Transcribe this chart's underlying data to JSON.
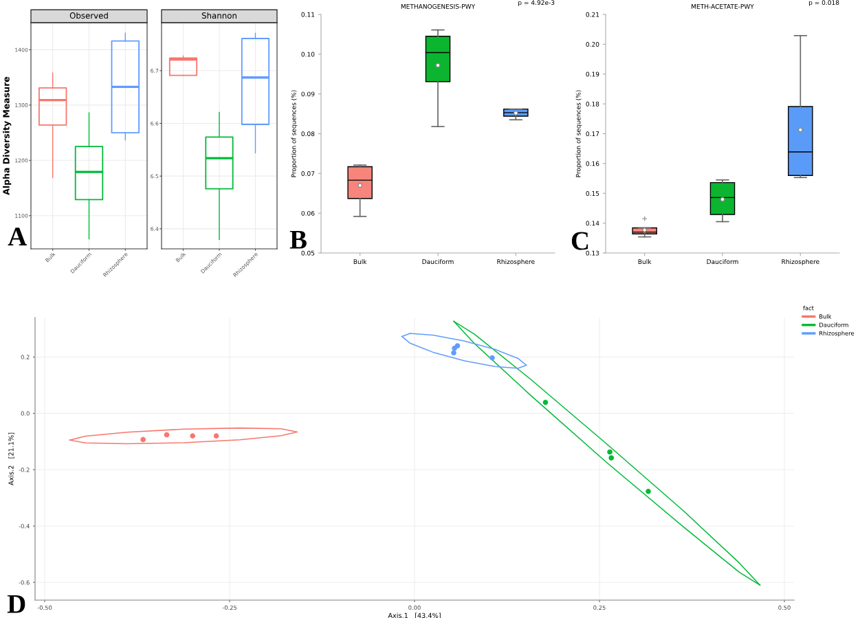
{
  "chart_data": [
    {
      "type": "box",
      "title": "Observed",
      "ylabel": "Alpha Diversity Measure",
      "categories": [
        "Bulk",
        "Dauciform",
        "Rhizosphere"
      ],
      "colors": [
        "#f8766d",
        "#00ba38",
        "#619cff"
      ],
      "grid": true,
      "ylim": [
        1040,
        1449
      ],
      "yticks": [
        1100,
        1200,
        1300,
        1400
      ],
      "annotations": [
        "A"
      ],
      "boxes": [
        {
          "low": 1169,
          "q1": 1264,
          "median": 1309,
          "q3": 1331,
          "high": 1358
        },
        {
          "low": 1058,
          "q1": 1129,
          "median": 1179,
          "q3": 1225,
          "high": 1286
        },
        {
          "low": 1237,
          "q1": 1250,
          "median": 1333,
          "q3": 1416,
          "high": 1430
        }
      ]
    },
    {
      "type": "box",
      "title": "Shannon",
      "categories": [
        "Bulk",
        "Dauciform",
        "Rhizosphere"
      ],
      "colors": [
        "#f8766d",
        "#00ba38",
        "#619cff"
      ],
      "grid": true,
      "ylim": [
        6.362,
        6.791
      ],
      "yticks": [
        6.4,
        6.5,
        6.6,
        6.7
      ],
      "boxes": [
        {
          "low": 6.691,
          "q1": 6.691,
          "median": 6.721,
          "q3": 6.724,
          "high": 6.728
        },
        {
          "low": 6.38,
          "q1": 6.476,
          "median": 6.534,
          "q3": 6.574,
          "high": 6.621
        },
        {
          "low": 6.544,
          "q1": 6.598,
          "median": 6.687,
          "q3": 6.761,
          "high": 6.771
        }
      ]
    },
    {
      "type": "box",
      "title": "METHANOGENESIS-PWY",
      "ylabel": "Proportion of sequences (%)",
      "categories": [
        "Bulk",
        "Dauciform",
        "Rhizosphere"
      ],
      "colors": [
        "#f7857c",
        "#0cb530",
        "#5b9bf8"
      ],
      "ylim": [
        0.05,
        0.11
      ],
      "yticks": [
        0.05,
        0.06,
        0.07,
        0.08,
        0.09,
        {
          "value": 0.1,
          "label": "0.10"
        },
        0.11
      ],
      "annotations": [
        "B",
        "p = 4.92e-3"
      ],
      "boxes": [
        {
          "low": 0.0592,
          "q1": 0.0637,
          "median": 0.0683,
          "q3": 0.0717,
          "high": 0.0721,
          "mean": 0.067
        },
        {
          "low": 0.0818,
          "q1": 0.0931,
          "median": 0.1004,
          "q3": 0.1045,
          "high": 0.1061,
          "mean": 0.0972
        },
        {
          "low": 0.0835,
          "q1": 0.0844,
          "median": 0.0853,
          "q3": 0.0862,
          "high": 0.0862,
          "mean": 0.0852
        }
      ]
    },
    {
      "type": "box",
      "title": "METH-ACETATE-PWY",
      "ylabel": "Proportion of sequences (%)",
      "categories": [
        "Bulk",
        "Dauciform",
        "Rhizosphere"
      ],
      "colors": [
        "#f7857c",
        "#0cb530",
        "#5b9bf8"
      ],
      "ylim": [
        0.13,
        0.21
      ],
      "yticks": [
        0.13,
        0.14,
        0.15,
        0.16,
        0.17,
        0.18,
        0.19,
        {
          "value": 0.2,
          "label": "0.20"
        },
        0.21
      ],
      "annotations": [
        "C",
        "p = 0.018"
      ],
      "boxes": [
        {
          "low": 0.1354,
          "q1": 0.1364,
          "median": 0.137,
          "q3": 0.1384,
          "high": 0.1384,
          "mean": 0.1377,
          "outliers": [
            0.1415
          ]
        },
        {
          "low": 0.1405,
          "q1": 0.1429,
          "median": 0.1486,
          "q3": 0.1536,
          "high": 0.1545,
          "mean": 0.148
        },
        {
          "low": 0.1553,
          "q1": 0.156,
          "median": 0.1639,
          "q3": 0.1791,
          "high": 0.2029,
          "mean": 0.1713
        }
      ]
    },
    {
      "type": "scatter",
      "xlabel": "Axis.1   [43.4%]",
      "ylabel": "Axis.2   [21.1%]",
      "legend_title": "fact",
      "legend": "right",
      "grid": true,
      "marker": "circle",
      "annotations": [
        "D"
      ],
      "xlim": [
        -0.513,
        0.513
      ],
      "ylim": [
        -0.663,
        0.34
      ],
      "xticks": [
        {
          "value": -0.5,
          "label": "-0.50"
        },
        {
          "value": -0.25,
          "label": "-0.25"
        },
        {
          "value": 0,
          "label": "0.00"
        },
        {
          "value": 0.25,
          "label": "0.25"
        },
        {
          "value": 0.5,
          "label": "0.50"
        }
      ],
      "yticks": [
        {
          "value": -0.6,
          "label": "-0.6"
        },
        {
          "value": -0.4,
          "label": "-0.4"
        },
        {
          "value": -0.2,
          "label": "-0.2"
        },
        {
          "value": 0,
          "label": "0.0"
        },
        {
          "value": 0.2,
          "label": "0.2"
        }
      ],
      "series": [
        {
          "name": "Bulk",
          "color": "#f8766d",
          "x": [
            -0.367,
            -0.335,
            -0.3,
            -0.268
          ],
          "values": [
            -0.093,
            -0.076,
            -0.08,
            -0.08
          ]
        },
        {
          "name": "Dauciform",
          "color": "#00ba38",
          "x": [
            0.177,
            0.264,
            0.266,
            0.316
          ],
          "values": [
            0.039,
            -0.137,
            -0.158,
            -0.277
          ]
        },
        {
          "name": "Rhizosphere",
          "color": "#619cff",
          "x": [
            0.053,
            0.054,
            0.058,
            0.105
          ],
          "values": [
            0.215,
            0.231,
            0.24,
            0.197
          ]
        },
        {
          "type": "line",
          "marker": "none",
          "color": "#f8766d",
          "x": [
            -0.466,
            -0.445,
            -0.389,
            -0.312,
            -0.236,
            -0.18,
            -0.159
          ],
          "values": [
            -0.095,
            -0.081,
            -0.067,
            -0.056,
            -0.052,
            -0.055,
            -0.066
          ]
        },
        {
          "type": "line",
          "marker": "none",
          "color": "#f8766d",
          "x": [
            -0.466,
            -0.445,
            -0.389,
            -0.312,
            -0.236,
            -0.18,
            -0.159
          ],
          "values": [
            -0.095,
            -0.105,
            -0.108,
            -0.104,
            -0.094,
            -0.079,
            -0.066
          ]
        },
        {
          "type": "line",
          "marker": "none",
          "color": "#00ba38",
          "x": [
            0.053,
            0.081,
            0.157,
            0.26,
            0.364,
            0.439,
            0.467
          ],
          "values": [
            0.327,
            0.281,
            0.121,
            -0.109,
            -0.347,
            -0.531,
            -0.61
          ]
        },
        {
          "type": "line",
          "marker": "none",
          "color": "#00ba38",
          "x": [
            0.053,
            0.081,
            0.157,
            0.26,
            0.364,
            0.439,
            0.467
          ],
          "values": [
            0.327,
            0.248,
            0.064,
            -0.175,
            -0.404,
            -0.564,
            -0.61
          ]
        },
        {
          "type": "line",
          "marker": "none",
          "color": "#619cff",
          "x": [
            -0.017,
            -0.006,
            0.025,
            0.067,
            0.109,
            0.14,
            0.151
          ],
          "values": [
            0.273,
            0.284,
            0.278,
            0.257,
            0.227,
            0.195,
            0.171
          ]
        },
        {
          "type": "line",
          "marker": "none",
          "color": "#619cff",
          "x": [
            -0.017,
            -0.006,
            0.025,
            0.067,
            0.109,
            0.14,
            0.151
          ],
          "values": [
            0.273,
            0.249,
            0.217,
            0.187,
            0.166,
            0.16,
            0.171
          ]
        }
      ]
    }
  ]
}
